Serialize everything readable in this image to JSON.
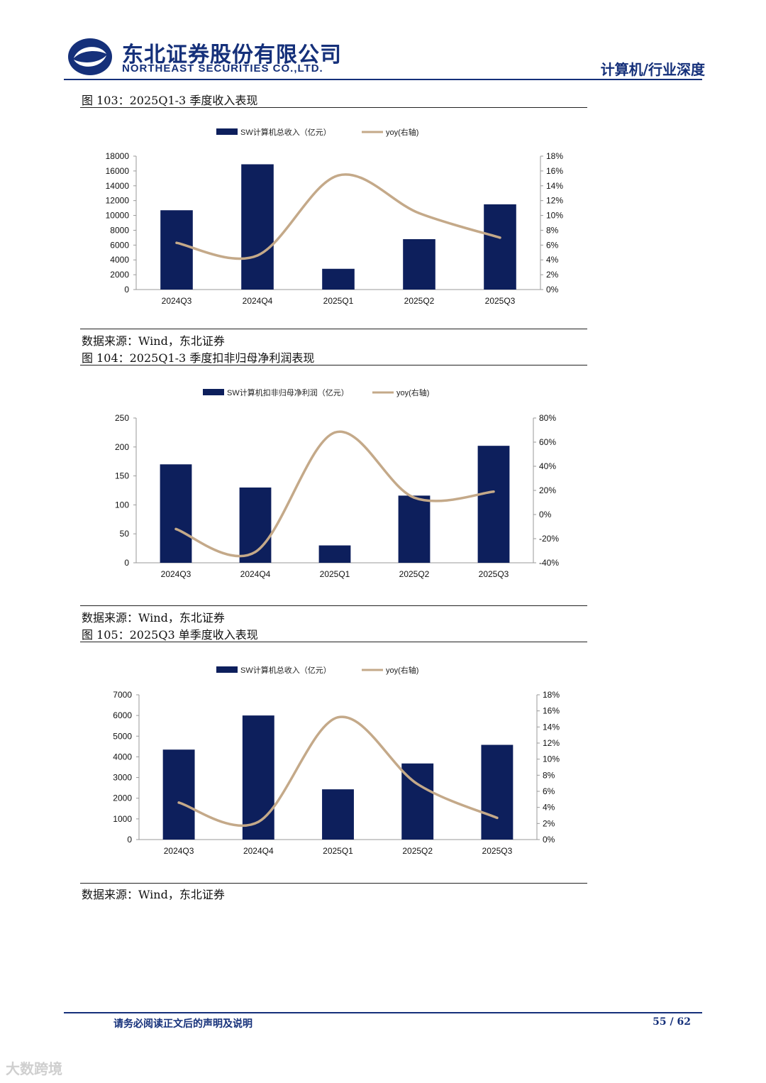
{
  "header": {
    "company_cn": "东北证券股份有限公司",
    "company_en": "NORTHEAST SECURITIES CO.,LTD.",
    "section": "计算机/行业深度",
    "brand_color": "#15307a"
  },
  "figures": [
    {
      "title": "图 103：2025Q1-3 季度收入表现",
      "source": "数据来源：Wind，东北证券"
    },
    {
      "title": "图 104：2025Q1-3 季度扣非归母净利润表现",
      "source": "数据来源：Wind，东北证券"
    },
    {
      "title": "图 105：2025Q3 单季度收入表现",
      "source": "数据来源：Wind，东北证券"
    }
  ],
  "chart_data": [
    {
      "type": "bar",
      "categories": [
        "2024Q3",
        "2024Q4",
        "2025Q1",
        "2025Q2",
        "2025Q3"
      ],
      "series": [
        {
          "name": "SW计算机总收入（亿元）",
          "type": "bar",
          "axis": "left",
          "color": "#0d1f5c",
          "values": [
            10700,
            16900,
            2800,
            6800,
            11500
          ]
        },
        {
          "name": "yoy(右轴)",
          "type": "line",
          "axis": "right",
          "color": "#c4a989",
          "values": [
            6.3,
            4.6,
            15.4,
            10.3,
            7.0
          ]
        }
      ],
      "left_axis": {
        "min": 0,
        "max": 18000,
        "step": 2000,
        "ticks": [
          "0",
          "2000",
          "4000",
          "6000",
          "8000",
          "10000",
          "12000",
          "14000",
          "16000",
          "18000"
        ]
      },
      "right_axis": {
        "min": 0,
        "max": 18,
        "step": 2,
        "ticks": [
          "0%",
          "2%",
          "4%",
          "6%",
          "8%",
          "10%",
          "12%",
          "14%",
          "16%",
          "18%"
        ]
      },
      "legend_position": "top",
      "grid": false
    },
    {
      "type": "bar",
      "categories": [
        "2024Q3",
        "2024Q4",
        "2025Q1",
        "2025Q2",
        "2025Q3"
      ],
      "series": [
        {
          "name": "SW计算机扣非归母净利润（亿元）",
          "type": "bar",
          "axis": "left",
          "color": "#0d1f5c",
          "values": [
            170,
            130,
            30,
            116,
            202
          ]
        },
        {
          "name": "yoy(右轴)",
          "type": "line",
          "axis": "right",
          "color": "#c4a989",
          "values": [
            -12,
            -31,
            68,
            14,
            19
          ]
        }
      ],
      "left_axis": {
        "min": 0,
        "max": 250,
        "step": 50,
        "ticks": [
          "0",
          "50",
          "100",
          "150",
          "200",
          "250"
        ]
      },
      "right_axis": {
        "min": -40,
        "max": 80,
        "step": 20,
        "ticks": [
          "-40%",
          "-20%",
          "0%",
          "20%",
          "40%",
          "60%",
          "80%"
        ]
      },
      "legend_position": "top",
      "grid": false
    },
    {
      "type": "bar",
      "categories": [
        "2024Q3",
        "2024Q4",
        "2025Q1",
        "2025Q2",
        "2025Q3"
      ],
      "series": [
        {
          "name": "SW计算机总收入（亿元）",
          "type": "bar",
          "axis": "left",
          "color": "#0d1f5c",
          "values": [
            4350,
            6000,
            2430,
            3680,
            4580
          ]
        },
        {
          "name": "yoy(右轴)",
          "type": "line",
          "axis": "right",
          "color": "#c4a989",
          "values": [
            4.6,
            2.2,
            15.2,
            6.9,
            2.7
          ]
        }
      ],
      "left_axis": {
        "min": 0,
        "max": 7000,
        "step": 1000,
        "ticks": [
          "0",
          "1000",
          "2000",
          "3000",
          "4000",
          "5000",
          "6000",
          "7000"
        ]
      },
      "right_axis": {
        "min": 0,
        "max": 18,
        "step": 2,
        "ticks": [
          "0%",
          "2%",
          "4%",
          "6%",
          "8%",
          "10%",
          "12%",
          "14%",
          "16%",
          "18%"
        ]
      },
      "legend_position": "top",
      "grid": false
    }
  ],
  "footer": {
    "note": "请务必阅读正文后的声明及说明",
    "page": "55 / 62",
    "watermark": "大数跨境"
  }
}
